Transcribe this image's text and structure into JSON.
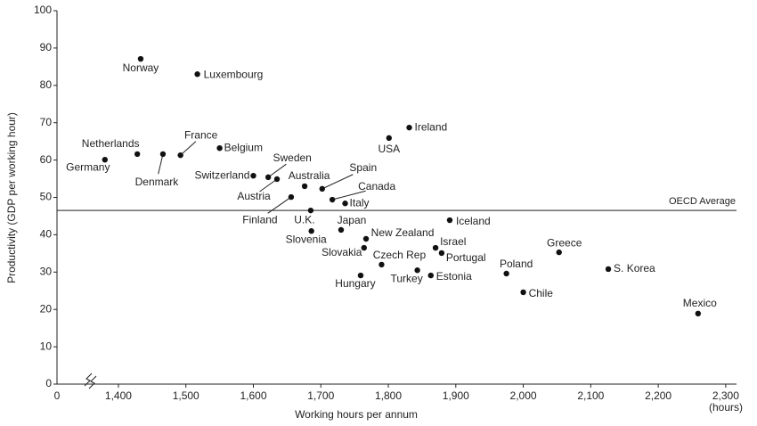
{
  "chart_data": {
    "type": "scatter",
    "x_label": "Working hours per annum",
    "x_unit": "(hours)",
    "y_label": "Productivity (GDP per working hour)",
    "x_origin_label": "0",
    "x_axis_break": true,
    "color": "#111111",
    "xlim": [
      1309,
      2316
    ],
    "ylim": [
      0,
      100
    ],
    "xticks": [
      {
        "value": 1400,
        "label": "1,400"
      },
      {
        "value": 1500,
        "label": "1,500"
      },
      {
        "value": 1600,
        "label": "1,600"
      },
      {
        "value": 1700,
        "label": "1,700"
      },
      {
        "value": 1800,
        "label": "1,800"
      },
      {
        "value": 1900,
        "label": "1,900"
      },
      {
        "value": 2000,
        "label": "2,000"
      },
      {
        "value": 2100,
        "label": "2,100"
      },
      {
        "value": 2200,
        "label": "2,200"
      },
      {
        "value": 2300,
        "label": "2,300"
      }
    ],
    "yticks": [
      0,
      10,
      20,
      30,
      40,
      50,
      60,
      70,
      80,
      90,
      100
    ],
    "reference_line": {
      "value": 46.5,
      "label": "OECD Average"
    },
    "labels": [
      "Norway",
      "Luxembourg",
      "Netherlands",
      "Germany",
      "Denmark",
      "France",
      "Belgium",
      "Switzerland",
      "Sweden",
      "Austria",
      "Australia",
      "Spain",
      "Canada",
      "Italy",
      "Finland",
      "U.K.",
      "Slovenia",
      "Japan",
      "New Zealand",
      "Slovakia",
      "Hungary",
      "Czech Rep",
      "Turkey",
      "Estonia",
      "Israel",
      "Portugal",
      "Iceland",
      "USA",
      "Ireland",
      "Poland",
      "Chile",
      "Greece",
      "S. Korea",
      "Mexico"
    ],
    "x": [
      1433,
      1517,
      1428,
      1380,
      1466,
      1492,
      1550,
      1600,
      1622,
      1635,
      1676,
      1702,
      1717,
      1736,
      1656,
      1685,
      1686,
      1730,
      1767,
      1764,
      1759,
      1790,
      1843,
      1863,
      1870,
      1879,
      1891,
      1801,
      1831,
      1975,
      2000,
      2053,
      2126,
      2259
    ],
    "values": [
      87.1,
      83,
      61.6,
      60.1,
      61.6,
      61.3,
      63.2,
      55.8,
      55.4,
      54.9,
      53,
      52.3,
      49.4,
      48.4,
      50.1,
      46.5,
      41,
      41.3,
      38.9,
      36.5,
      29.1,
      32,
      30.5,
      29.1,
      36.5,
      35.1,
      43.9,
      65.9,
      68.7,
      29.6,
      24.6,
      35.3,
      30.8,
      18.9
    ]
  }
}
